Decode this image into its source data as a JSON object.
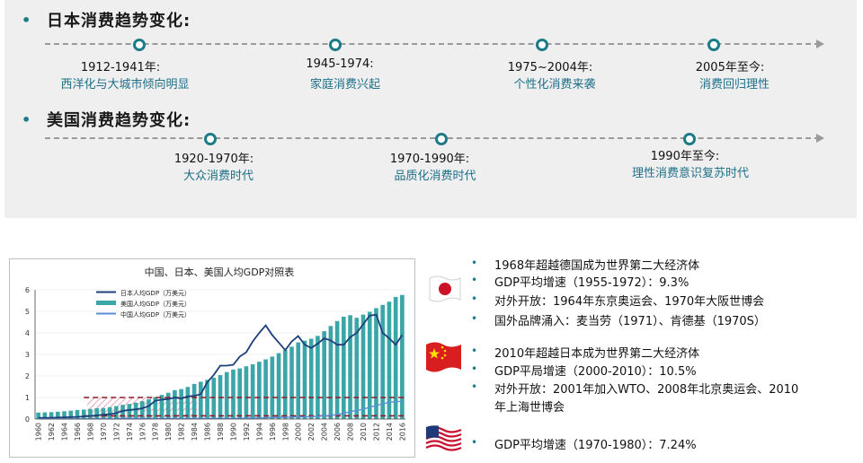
{
  "japan_trend": {
    "title": "日本消费趋势变化:",
    "events": [
      {
        "year": "1912-1941年:",
        "desc": "西洋化与大城市倾向明显"
      },
      {
        "year": "1945-1974:",
        "desc": "家庭消费兴起"
      },
      {
        "year": "1975~2004年:",
        "desc": "个性化消费来袭"
      },
      {
        "year": "2005年至今:",
        "desc": "消费回归理性"
      }
    ]
  },
  "us_trend": {
    "title": "美国消费趋势变化:",
    "events": [
      {
        "year": "1920-1970年:",
        "desc": "大众消费时代"
      },
      {
        "year": "1970-1990年:",
        "desc": "品质化消费时代"
      },
      {
        "year": "1990年至今:",
        "desc": "理性消费意识复苏时代"
      }
    ]
  },
  "chart_data": {
    "type": "bar",
    "title": "中国、日本、美国人均GDP对照表",
    "xlabel": "",
    "ylabel": "",
    "ylim": [
      0,
      6
    ],
    "yticks": [
      0,
      1,
      2,
      3,
      4,
      5,
      6
    ],
    "x_tick_labels": [
      "1960",
      "1962",
      "1964",
      "1966",
      "1968",
      "1970",
      "1972",
      "1974",
      "1976",
      "1978",
      "1980",
      "1982",
      "1984",
      "1986",
      "1988",
      "1990",
      "1992",
      "1994",
      "1996",
      "1998",
      "2000",
      "2002",
      "2004",
      "2006",
      "2008",
      "2010",
      "2012",
      "2014",
      "2016"
    ],
    "years": [
      1960,
      1961,
      1962,
      1963,
      1964,
      1965,
      1966,
      1967,
      1968,
      1969,
      1970,
      1971,
      1972,
      1973,
      1974,
      1975,
      1976,
      1977,
      1978,
      1979,
      1980,
      1981,
      1982,
      1983,
      1984,
      1985,
      1986,
      1987,
      1988,
      1989,
      1990,
      1991,
      1992,
      1993,
      1994,
      1995,
      1996,
      1997,
      1998,
      1999,
      2000,
      2001,
      2002,
      2003,
      2004,
      2005,
      2006,
      2007,
      2008,
      2009,
      2010,
      2011,
      2012,
      2013,
      2014,
      2015,
      2016
    ],
    "series": [
      {
        "name": "日本人均GDP（万美元）",
        "type": "line",
        "color": "#1f3f7a",
        "values": [
          0.05,
          0.06,
          0.06,
          0.07,
          0.08,
          0.09,
          0.1,
          0.12,
          0.14,
          0.17,
          0.2,
          0.22,
          0.28,
          0.38,
          0.42,
          0.45,
          0.5,
          0.6,
          0.85,
          0.9,
          0.93,
          1.0,
          0.95,
          1.05,
          1.08,
          1.15,
          1.7,
          2.05,
          2.48,
          2.48,
          2.52,
          2.9,
          3.1,
          3.6,
          4.0,
          4.35,
          3.9,
          3.55,
          3.2,
          3.6,
          3.85,
          3.45,
          3.3,
          3.5,
          3.75,
          3.65,
          3.45,
          3.45,
          3.8,
          4.0,
          4.4,
          4.8,
          4.85,
          4.0,
          3.75,
          3.45,
          3.9
        ]
      },
      {
        "name": "美国人均GDP（万美元）",
        "type": "bar",
        "color": "#3aa6a8",
        "values": [
          0.3,
          0.31,
          0.32,
          0.34,
          0.36,
          0.39,
          0.42,
          0.44,
          0.47,
          0.5,
          0.51,
          0.55,
          0.6,
          0.66,
          0.7,
          0.76,
          0.83,
          0.92,
          1.02,
          1.12,
          1.22,
          1.34,
          1.39,
          1.49,
          1.63,
          1.73,
          1.82,
          1.92,
          2.04,
          2.18,
          2.3,
          2.35,
          2.45,
          2.54,
          2.66,
          2.77,
          2.9,
          3.06,
          3.2,
          3.36,
          3.56,
          3.64,
          3.73,
          3.86,
          4.08,
          4.32,
          4.55,
          4.75,
          4.82,
          4.7,
          4.85,
          4.98,
          5.15,
          5.3,
          5.45,
          5.67,
          5.76
        ]
      },
      {
        "name": "中国人均GDP（万美元）",
        "type": "line",
        "color": "#5b8fd6",
        "values": [
          0.01,
          0.01,
          0.01,
          0.01,
          0.01,
          0.01,
          0.01,
          0.01,
          0.01,
          0.01,
          0.01,
          0.01,
          0.01,
          0.02,
          0.02,
          0.02,
          0.02,
          0.02,
          0.02,
          0.02,
          0.02,
          0.02,
          0.02,
          0.03,
          0.03,
          0.03,
          0.03,
          0.03,
          0.03,
          0.03,
          0.03,
          0.03,
          0.04,
          0.04,
          0.05,
          0.06,
          0.07,
          0.08,
          0.08,
          0.09,
          0.1,
          0.1,
          0.11,
          0.13,
          0.15,
          0.17,
          0.21,
          0.26,
          0.35,
          0.39,
          0.46,
          0.55,
          0.63,
          0.71,
          0.77,
          0.81,
          0.82
        ]
      }
    ],
    "reference_lines": [
      {
        "value": 1.0,
        "color": "#8b1a2a"
      },
      {
        "value": 0.15,
        "color": "#8b1a2a"
      }
    ],
    "highlight_periods": [
      {
        "from": 1968,
        "to": 1984,
        "color": "#e38fa8"
      }
    ]
  },
  "notes": {
    "japan": [
      "1968年超越德国成为世界第二大经济体",
      "GDP平均增速（1955-1972）：9.3%",
      "对外开放：1964年东京奥运会、1970年大阪世博会",
      "国外品牌涌入：麦当劳（1971）、肯德基（1970S）"
    ],
    "china": [
      "2010年超越日本成为世界第二大经济体",
      "GDP平局增速（2000-2010）：10.5%",
      "对外开放：2001年加入WTO、2008年北京奥运会、2010",
      "年上海世博会"
    ],
    "us": [
      "GDP平均增速（1970-1980）：7.24%"
    ]
  },
  "colors": {
    "accent": "#1d7a87",
    "panel": "#efefef",
    "timeline": "#9a9a9a"
  }
}
